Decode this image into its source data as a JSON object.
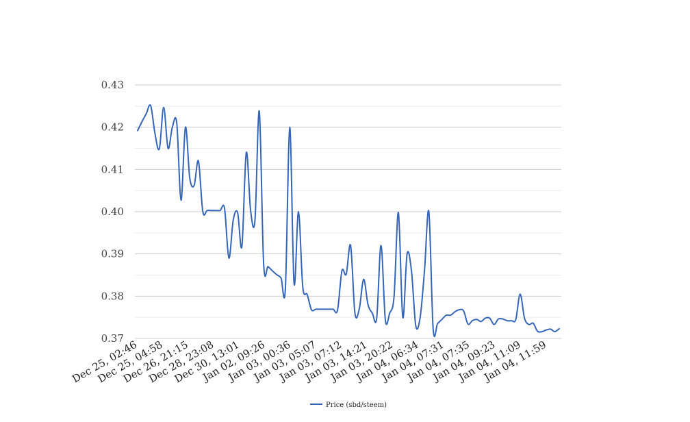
{
  "chart_data": {
    "type": "line",
    "title": "",
    "xlabel": "",
    "ylabel": "",
    "ylim": [
      0.37,
      0.43
    ],
    "y_ticks": [
      "0.37",
      "0.38",
      "0.39",
      "0.40",
      "0.41",
      "0.42",
      "0.43"
    ],
    "grid": "horizontal major and minor",
    "legend_position": "bottom-center",
    "line_color": "#3465b9",
    "x_tick_labels": [
      "Dec 25, 02:46",
      "Dec 25, 04:58",
      "Dec 26, 21:15",
      "Dec 28, 23:08",
      "Dec 30, 13:01",
      "Jan 02, 09:26",
      "Jan 03, 00:36",
      "Jan 03, 05:07",
      "Jan 03, 07:12",
      "Jan 03, 14:21",
      "Jan 03, 20:22",
      "Jan 04, 06:34",
      "Jan 04, 07:31",
      "Jan 04, 07:35",
      "Jan 04, 09:23",
      "Jan 04, 11:09",
      "Jan 04, 11:59"
    ],
    "series": [
      {
        "name": "Price (sbd/steem)",
        "values": [
          0.4192,
          0.4213,
          0.4232,
          0.4251,
          0.4185,
          0.4149,
          0.4247,
          0.415,
          0.42,
          0.421,
          0.4027,
          0.42,
          0.408,
          0.4062,
          0.412,
          0.4,
          0.4003,
          0.4003,
          0.4003,
          0.4003,
          0.4008,
          0.389,
          0.398,
          0.3998,
          0.3918,
          0.414,
          0.4003,
          0.398,
          0.4238,
          0.3875,
          0.387,
          0.386,
          0.3851,
          0.3843,
          0.3818,
          0.42,
          0.383,
          0.4,
          0.3822,
          0.3804,
          0.3768,
          0.3769,
          0.3769,
          0.3769,
          0.3769,
          0.3769,
          0.3767,
          0.386,
          0.3852,
          0.392,
          0.376,
          0.377,
          0.384,
          0.378,
          0.376,
          0.3748,
          0.392,
          0.3743,
          0.376,
          0.38,
          0.3998,
          0.375,
          0.39,
          0.386,
          0.373,
          0.375,
          0.386,
          0.4,
          0.3722,
          0.3735,
          0.3745,
          0.3755,
          0.3755,
          0.3763,
          0.3768,
          0.3765,
          0.3734,
          0.3742,
          0.3745,
          0.374,
          0.3748,
          0.3748,
          0.3733,
          0.3746,
          0.3746,
          0.3742,
          0.3742,
          0.3745,
          0.3805,
          0.3748,
          0.3733,
          0.3736,
          0.3717,
          0.3716,
          0.372,
          0.3722,
          0.3716,
          0.3723
        ]
      }
    ]
  }
}
